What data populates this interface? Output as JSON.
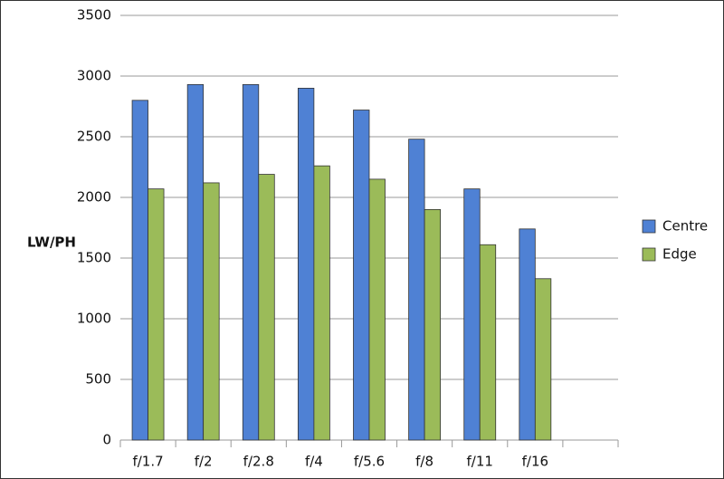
{
  "chart_data": {
    "type": "bar",
    "y_label": "LW/PH",
    "categories": [
      "f/1.7",
      "f/2",
      "f/2.8",
      "f/4",
      "f/5.6",
      "f/8",
      "f/11",
      "f/16",
      null
    ],
    "series": [
      {
        "name": "Centre",
        "color": "#4f81d4",
        "values": [
          2800,
          2930,
          2930,
          2900,
          2720,
          2480,
          2070,
          1740,
          null
        ]
      },
      {
        "name": "Edge",
        "color": "#9bbb59",
        "values": [
          2070,
          2120,
          2190,
          2260,
          2150,
          1900,
          1610,
          1330,
          null
        ]
      }
    ],
    "ylim": [
      0,
      3500
    ],
    "yticks": [
      0,
      500,
      1000,
      1500,
      2000,
      2500,
      3000,
      3500
    ],
    "grid": true,
    "legend": "right"
  }
}
